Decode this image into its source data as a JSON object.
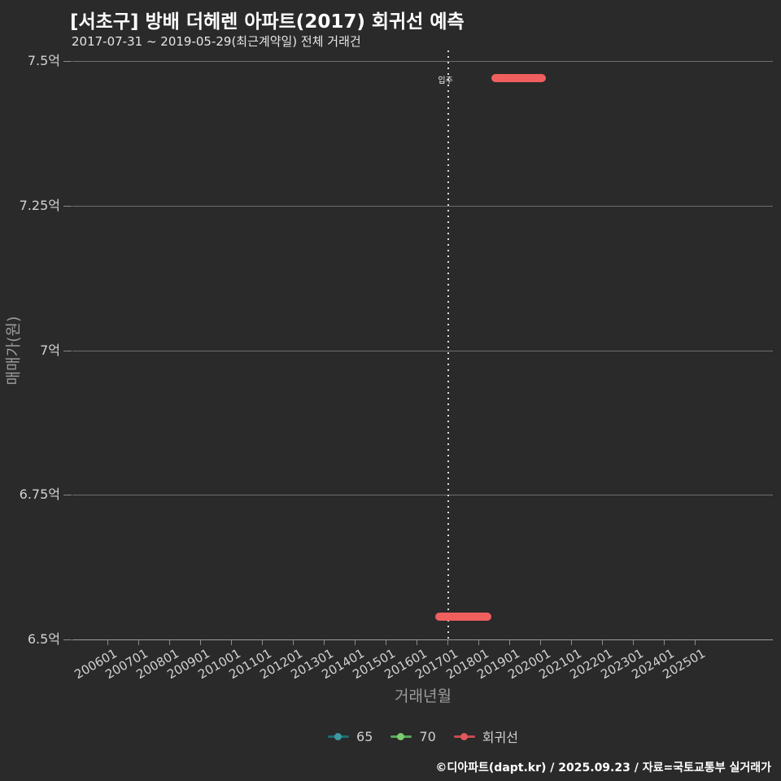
{
  "chart_data": {
    "type": "line",
    "title": "[서초구] 방배 더헤렌 아파트(2017) 회귀선 예측",
    "subtitle": "2017-07-31 ~ 2019-05-29(최근계약일) 전체 거래건",
    "xlabel": "거래년월",
    "ylabel": "매매가(원)",
    "background_color": "#2a2a2a",
    "grid": true,
    "yticks": {
      "labels": [
        "7.5억",
        "7.25억",
        "7억",
        "6.75억",
        "6.5억"
      ],
      "values_eok": [
        7.5,
        7.25,
        7.0,
        6.75,
        6.5
      ]
    },
    "ylim_eok": [
      6.5,
      7.5
    ],
    "xtick_labels": [
      "200601",
      "200701",
      "200801",
      "200901",
      "201001",
      "201101",
      "201201",
      "201301",
      "201401",
      "201501",
      "201601",
      "201701",
      "201801",
      "201901",
      "202001",
      "202101",
      "202201",
      "202301",
      "202401",
      "202501"
    ],
    "annotation_vline": {
      "label": "입주",
      "x_yearmonth": "201701",
      "style": "dotted",
      "color": "#dcdcdc"
    },
    "series": [
      {
        "name": "65",
        "type": "scatter",
        "color": "#3d9aa0",
        "visible_points": []
      },
      {
        "name": "70",
        "type": "scatter",
        "color": "#7ccc72",
        "visible_points": []
      },
      {
        "name": "회귀선",
        "type": "regression-line",
        "color": "#ef5f5e",
        "segments": [
          {
            "x_start": "201806",
            "x_end": "202003",
            "y_eok": 7.47
          },
          {
            "x_start": "201608",
            "x_end": "201806",
            "y_eok": 6.54
          }
        ]
      }
    ],
    "legend": {
      "position": "bottom-center",
      "items": [
        {
          "name": "65",
          "line_color": "#1d6d74",
          "dot_color": "#3d9aa0"
        },
        {
          "name": "70",
          "line_color": "#55a85a",
          "dot_color": "#7ccc72"
        },
        {
          "name": "회귀선",
          "line_color": "#c74b50",
          "dot_color": "#e0595c"
        }
      ]
    }
  },
  "footer": "©디아파트(dapt.kr) / 2025.09.23 / 자료=국토교통부 실거래가"
}
